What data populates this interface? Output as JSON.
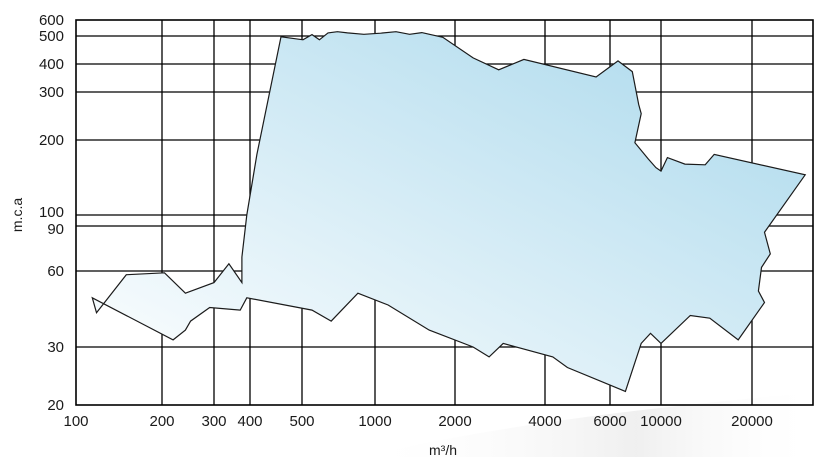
{
  "chart_data": {
    "type": "area",
    "xlabel": "m³/h",
    "ylabel": "m.c.a",
    "x_tick_labels": [
      "100",
      "200",
      "300",
      "400",
      "500",
      "1000",
      "2000",
      "4000",
      "6000",
      "10000",
      "20000"
    ],
    "y_tick_labels": [
      "20",
      "30",
      "60",
      "90",
      "100",
      "200",
      "300",
      "400",
      "500",
      "600"
    ],
    "x_scale": "nonlinear",
    "y_scale": "nonlinear",
    "grid": true,
    "region_fill": {
      "from": "#ffffff",
      "to": "#a9d8ec"
    },
    "region_outline": [
      [
        118,
        41
      ],
      [
        150,
        58
      ],
      [
        204,
        59
      ],
      [
        240,
        49
      ],
      [
        300,
        54
      ],
      [
        338,
        64
      ],
      [
        375,
        54
      ],
      [
        375,
        68
      ],
      [
        390,
        100
      ],
      [
        412,
        175
      ],
      [
        457,
        497
      ],
      [
        505,
        485
      ],
      [
        550,
        508
      ],
      [
        590,
        485
      ],
      [
        640,
        518
      ],
      [
        700,
        525
      ],
      [
        770,
        518
      ],
      [
        900,
        510
      ],
      [
        1050,
        516
      ],
      [
        1200,
        525
      ],
      [
        1350,
        510
      ],
      [
        1500,
        520
      ],
      [
        1800,
        495
      ],
      [
        2300,
        420
      ],
      [
        2800,
        377
      ],
      [
        3400,
        415
      ],
      [
        5500,
        350
      ],
      [
        6500,
        410
      ],
      [
        7500,
        370
      ],
      [
        8000,
        270
      ],
      [
        8200,
        250
      ],
      [
        7700,
        195
      ],
      [
        8800,
        168
      ],
      [
        9500,
        155
      ],
      [
        10000,
        150
      ],
      [
        10500,
        170
      ],
      [
        12000,
        160
      ],
      [
        14000,
        159
      ],
      [
        15000,
        175
      ],
      [
        30000,
        145
      ],
      [
        22000,
        85
      ],
      [
        23000,
        70
      ],
      [
        21500,
        62
      ],
      [
        21000,
        50
      ],
      [
        22000,
        45
      ],
      [
        18000,
        32
      ],
      [
        14500,
        39
      ],
      [
        12500,
        40
      ],
      [
        10000,
        31
      ],
      [
        9000,
        34
      ],
      [
        8200,
        31
      ],
      [
        7000,
        22
      ],
      [
        4600,
        26
      ],
      [
        4200,
        28
      ],
      [
        2900,
        31
      ],
      [
        2600,
        28
      ],
      [
        2300,
        30
      ],
      [
        1600,
        35
      ],
      [
        1120,
        44
      ],
      [
        850,
        49
      ],
      [
        660,
        38
      ],
      [
        550,
        42
      ],
      [
        390,
        47
      ],
      [
        370,
        42
      ],
      [
        290,
        43
      ],
      [
        250,
        38
      ],
      [
        240,
        35
      ],
      [
        218,
        32
      ],
      [
        114,
        47
      ]
    ]
  }
}
